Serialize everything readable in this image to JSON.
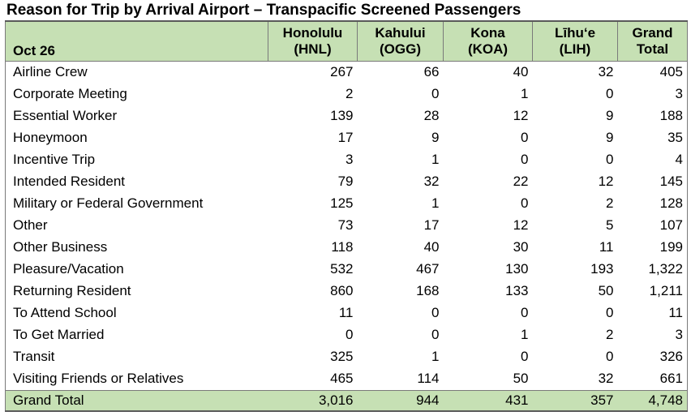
{
  "title": "Reason for Trip by Arrival Airport – Transpacific Screened Passengers",
  "colors": {
    "header_fill": "#c6e0b4",
    "total_fill": "#c6e0b4",
    "border": "#7a7a7a"
  },
  "table": {
    "corner_label": "Oct 26",
    "columns": [
      {
        "name": "Honolulu",
        "code": "(HNL)"
      },
      {
        "name": "Kahului",
        "code": "(OGG)"
      },
      {
        "name": "Kona",
        "code": "(KOA)"
      },
      {
        "name": "Līhu‘e",
        "code": "(LIH)"
      },
      {
        "name": "Grand",
        "code": "Total"
      }
    ],
    "rows": [
      {
        "label": "Airline Crew",
        "values": [
          "267",
          "66",
          "40",
          "32",
          "405"
        ]
      },
      {
        "label": "Corporate Meeting",
        "values": [
          "2",
          "0",
          "1",
          "0",
          "3"
        ]
      },
      {
        "label": "Essential Worker",
        "values": [
          "139",
          "28",
          "12",
          "9",
          "188"
        ]
      },
      {
        "label": "Honeymoon",
        "values": [
          "17",
          "9",
          "0",
          "9",
          "35"
        ]
      },
      {
        "label": "Incentive Trip",
        "values": [
          "3",
          "1",
          "0",
          "0",
          "4"
        ]
      },
      {
        "label": "Intended Resident",
        "values": [
          "79",
          "32",
          "22",
          "12",
          "145"
        ]
      },
      {
        "label": "Military or Federal Government",
        "values": [
          "125",
          "1",
          "0",
          "2",
          "128"
        ]
      },
      {
        "label": "Other",
        "values": [
          "73",
          "17",
          "12",
          "5",
          "107"
        ]
      },
      {
        "label": "Other Business",
        "values": [
          "118",
          "40",
          "30",
          "11",
          "199"
        ]
      },
      {
        "label": "Pleasure/Vacation",
        "values": [
          "532",
          "467",
          "130",
          "193",
          "1,322"
        ]
      },
      {
        "label": "Returning Resident",
        "values": [
          "860",
          "168",
          "133",
          "50",
          "1,211"
        ]
      },
      {
        "label": "To Attend School",
        "values": [
          "11",
          "0",
          "0",
          "0",
          "11"
        ]
      },
      {
        "label": "To Get Married",
        "values": [
          "0",
          "0",
          "1",
          "2",
          "3"
        ]
      },
      {
        "label": "Transit",
        "values": [
          "325",
          "1",
          "0",
          "0",
          "326"
        ]
      },
      {
        "label": "Visiting Friends or Relatives",
        "values": [
          "465",
          "114",
          "50",
          "32",
          "661"
        ]
      }
    ],
    "total": {
      "label": "Grand Total",
      "values": [
        "3,016",
        "944",
        "431",
        "357",
        "4,748"
      ]
    }
  }
}
